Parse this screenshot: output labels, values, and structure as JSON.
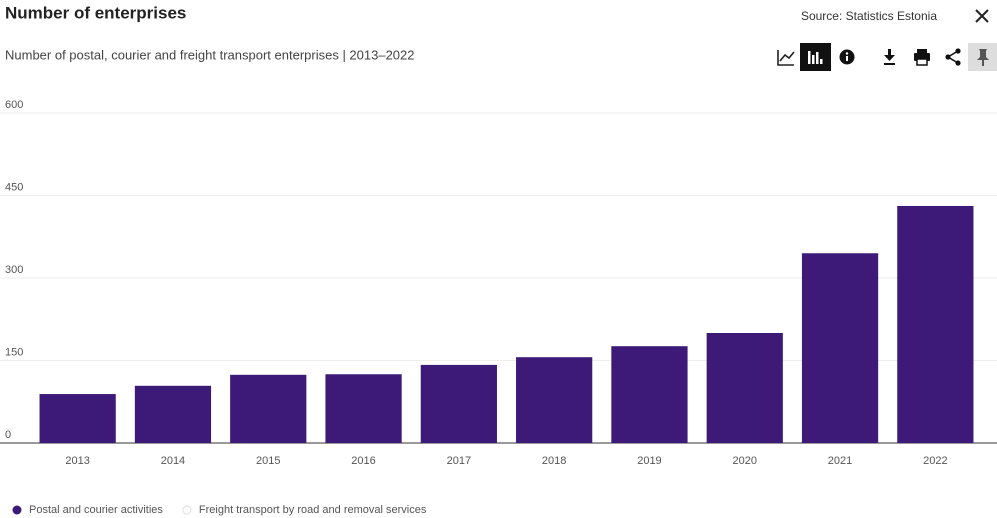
{
  "chart_data": {
    "type": "bar",
    "title": "Number of enterprises",
    "subtitle": "Number of postal, courier and freight transport enterprises | 2013–2022",
    "source": "Source: Statistics Estonia",
    "categories": [
      "2013",
      "2014",
      "2015",
      "2016",
      "2017",
      "2018",
      "2019",
      "2020",
      "2021",
      "2022"
    ],
    "series": [
      {
        "name": "Postal and courier activities",
        "color": "#3d1a78",
        "visible": true,
        "values": [
          89,
          104,
          124,
          125,
          142,
          156,
          176,
          200,
          345,
          431
        ]
      },
      {
        "name": "Freight transport by road and removal services",
        "color": "#e0e0e0",
        "visible": false,
        "values": [
          null,
          null,
          null,
          null,
          null,
          null,
          null,
          null,
          null,
          null
        ]
      }
    ],
    "ylim": [
      0,
      600
    ],
    "yticks": [
      0,
      150,
      300,
      450,
      600
    ],
    "grid": true,
    "legend": "bottom-left"
  }
}
